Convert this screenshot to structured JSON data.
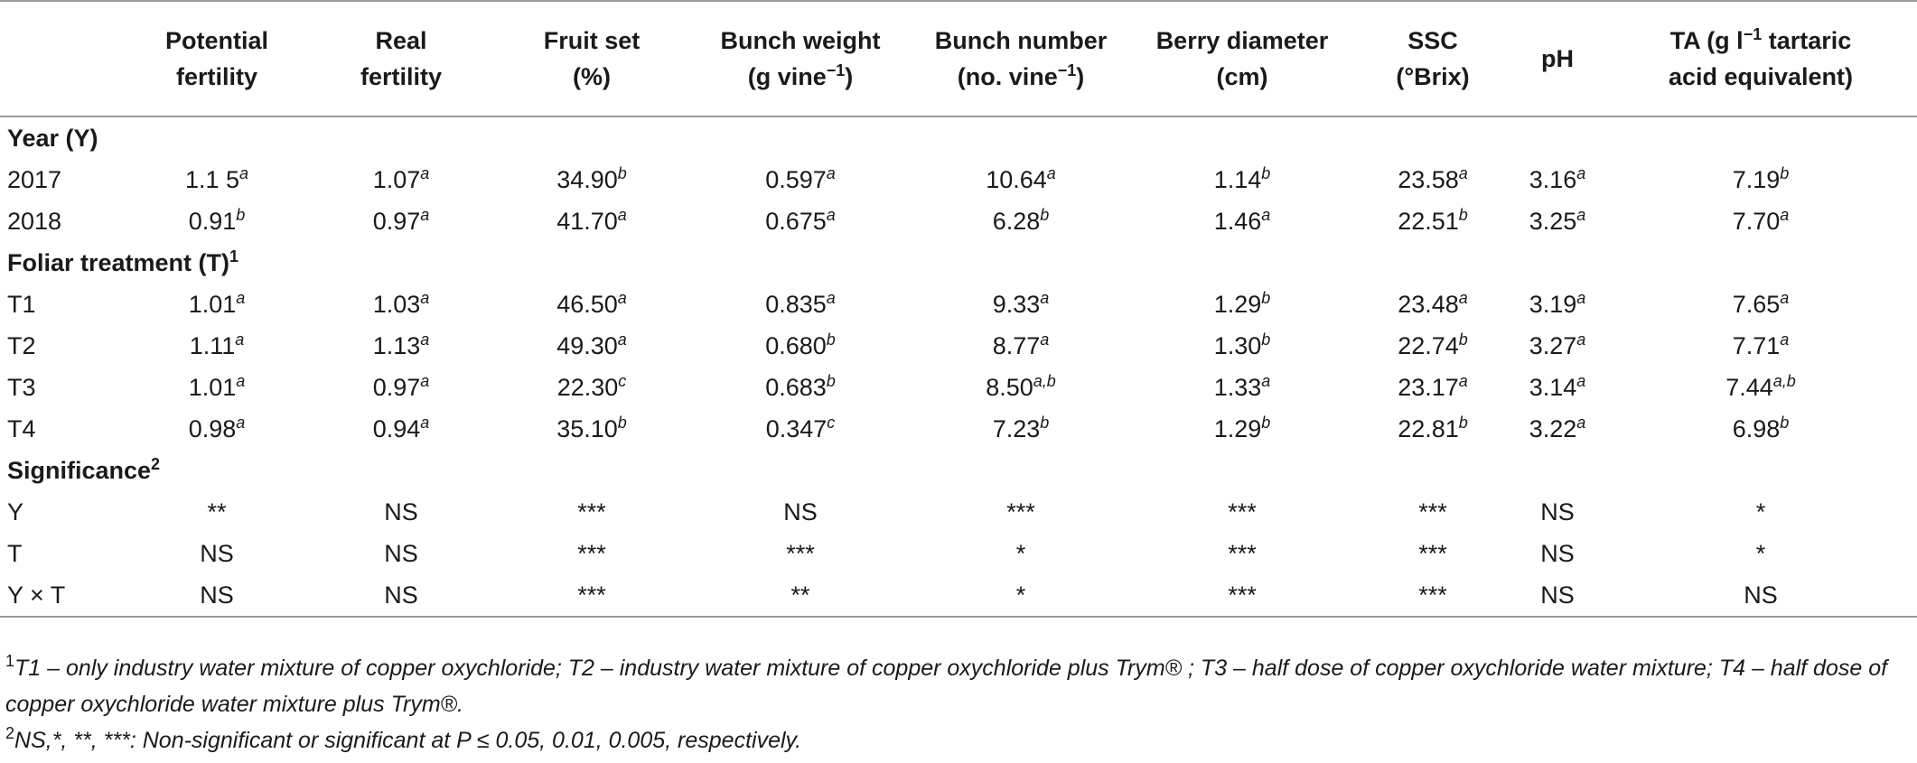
{
  "columns": [
    {
      "l1": "",
      "l2": ""
    },
    {
      "l1": "Potential",
      "l2": "fertility"
    },
    {
      "l1": "Real",
      "l2": "fertility"
    },
    {
      "l1": "Fruit set",
      "l2": "(%)"
    },
    {
      "l1": "Bunch weight",
      "l2": "(g vine",
      "l2sup": "−1",
      "l2end": ")"
    },
    {
      "l1": "Bunch number",
      "l2": "(no. vine",
      "l2sup": "−1",
      "l2end": ")"
    },
    {
      "l1": "Berry diameter",
      "l2": "(cm)"
    },
    {
      "l1": "SSC",
      "l2": "(°Brix)"
    },
    {
      "l1": "pH",
      "l2": ""
    },
    {
      "l1": "TA (g l",
      "l1sup": "−1",
      "l1end": " tartaric",
      "l2": "acid equivalent)"
    }
  ],
  "sections": [
    {
      "title": "Year (Y)",
      "title_sup": "",
      "rows": [
        {
          "label": "2017",
          "cells": [
            [
              "1.1 5",
              "a"
            ],
            [
              "1.07",
              "a"
            ],
            [
              "34.90",
              "b"
            ],
            [
              "0.597",
              "a"
            ],
            [
              "10.64",
              "a"
            ],
            [
              "1.14",
              "b"
            ],
            [
              "23.58",
              "a"
            ],
            [
              "3.16",
              "a"
            ],
            [
              "7.19",
              "b"
            ]
          ]
        },
        {
          "label": "2018",
          "cells": [
            [
              "0.91",
              "b"
            ],
            [
              "0.97",
              "a"
            ],
            [
              "41.70",
              "a"
            ],
            [
              "0.675",
              "a"
            ],
            [
              "6.28",
              "b"
            ],
            [
              "1.46",
              "a"
            ],
            [
              "22.51",
              "b"
            ],
            [
              "3.25",
              "a"
            ],
            [
              "7.70",
              "a"
            ]
          ]
        }
      ]
    },
    {
      "title": "Foliar treatment (T)",
      "title_sup": "1",
      "rows": [
        {
          "label": "T1",
          "cells": [
            [
              "1.01",
              "a"
            ],
            [
              "1.03",
              "a"
            ],
            [
              "46.50",
              "a"
            ],
            [
              "0.835",
              "a"
            ],
            [
              "9.33",
              "a"
            ],
            [
              "1.29",
              "b"
            ],
            [
              "23.48",
              "a"
            ],
            [
              "3.19",
              "a"
            ],
            [
              "7.65",
              "a"
            ]
          ]
        },
        {
          "label": "T2",
          "cells": [
            [
              "1.11",
              "a"
            ],
            [
              "1.13",
              "a"
            ],
            [
              "49.30",
              "a"
            ],
            [
              "0.680",
              "b"
            ],
            [
              "8.77",
              "a"
            ],
            [
              "1.30",
              "b"
            ],
            [
              "22.74",
              "b"
            ],
            [
              "3.27",
              "a"
            ],
            [
              "7.71",
              "a"
            ]
          ]
        },
        {
          "label": "T3",
          "cells": [
            [
              "1.01",
              "a"
            ],
            [
              "0.97",
              "a"
            ],
            [
              "22.30",
              "c"
            ],
            [
              "0.683",
              "b"
            ],
            [
              "8.50",
              "a,b"
            ],
            [
              "1.33",
              "a"
            ],
            [
              "23.17",
              "a"
            ],
            [
              "3.14",
              "a"
            ],
            [
              "7.44",
              "a,b"
            ]
          ]
        },
        {
          "label": "T4",
          "cells": [
            [
              "0.98",
              "a"
            ],
            [
              "0.94",
              "a"
            ],
            [
              "35.10",
              "b"
            ],
            [
              "0.347",
              "c"
            ],
            [
              "7.23",
              "b"
            ],
            [
              "1.29",
              "b"
            ],
            [
              "22.81",
              "b"
            ],
            [
              "3.22",
              "a"
            ],
            [
              "6.98",
              "b"
            ]
          ]
        }
      ]
    },
    {
      "title": "Significance",
      "title_sup": "2",
      "rows": [
        {
          "label": "Y",
          "cells": [
            [
              "**",
              ""
            ],
            [
              "NS",
              ""
            ],
            [
              "***",
              ""
            ],
            [
              "NS",
              ""
            ],
            [
              "***",
              ""
            ],
            [
              "***",
              ""
            ],
            [
              "***",
              ""
            ],
            [
              "NS",
              ""
            ],
            [
              "*",
              ""
            ]
          ]
        },
        {
          "label": "T",
          "cells": [
            [
              "NS",
              ""
            ],
            [
              "NS",
              ""
            ],
            [
              "***",
              ""
            ],
            [
              "***",
              ""
            ],
            [
              "*",
              ""
            ],
            [
              "***",
              ""
            ],
            [
              "***",
              ""
            ],
            [
              "NS",
              ""
            ],
            [
              "*",
              ""
            ]
          ]
        },
        {
          "label": "Y × T",
          "cells": [
            [
              "NS",
              ""
            ],
            [
              "NS",
              ""
            ],
            [
              "***",
              ""
            ],
            [
              "**",
              ""
            ],
            [
              "*",
              ""
            ],
            [
              "***",
              ""
            ],
            [
              "***",
              ""
            ],
            [
              "NS",
              ""
            ],
            [
              "NS",
              ""
            ]
          ]
        }
      ]
    }
  ],
  "footnotes": [
    {
      "mark": "1",
      "text": "T1 – only industry water mixture of copper oxychloride; T2 – industry water mixture of copper oxychloride plus Trym® ; T3 – half dose of copper oxychloride water mixture; T4 – half dose of copper oxychloride water mixture plus Trym®."
    },
    {
      "mark": "2",
      "text": "NS,*, **, ***: Non-significant or significant at P ≤ 0.05, 0.01, 0.005, respectively."
    }
  ]
}
